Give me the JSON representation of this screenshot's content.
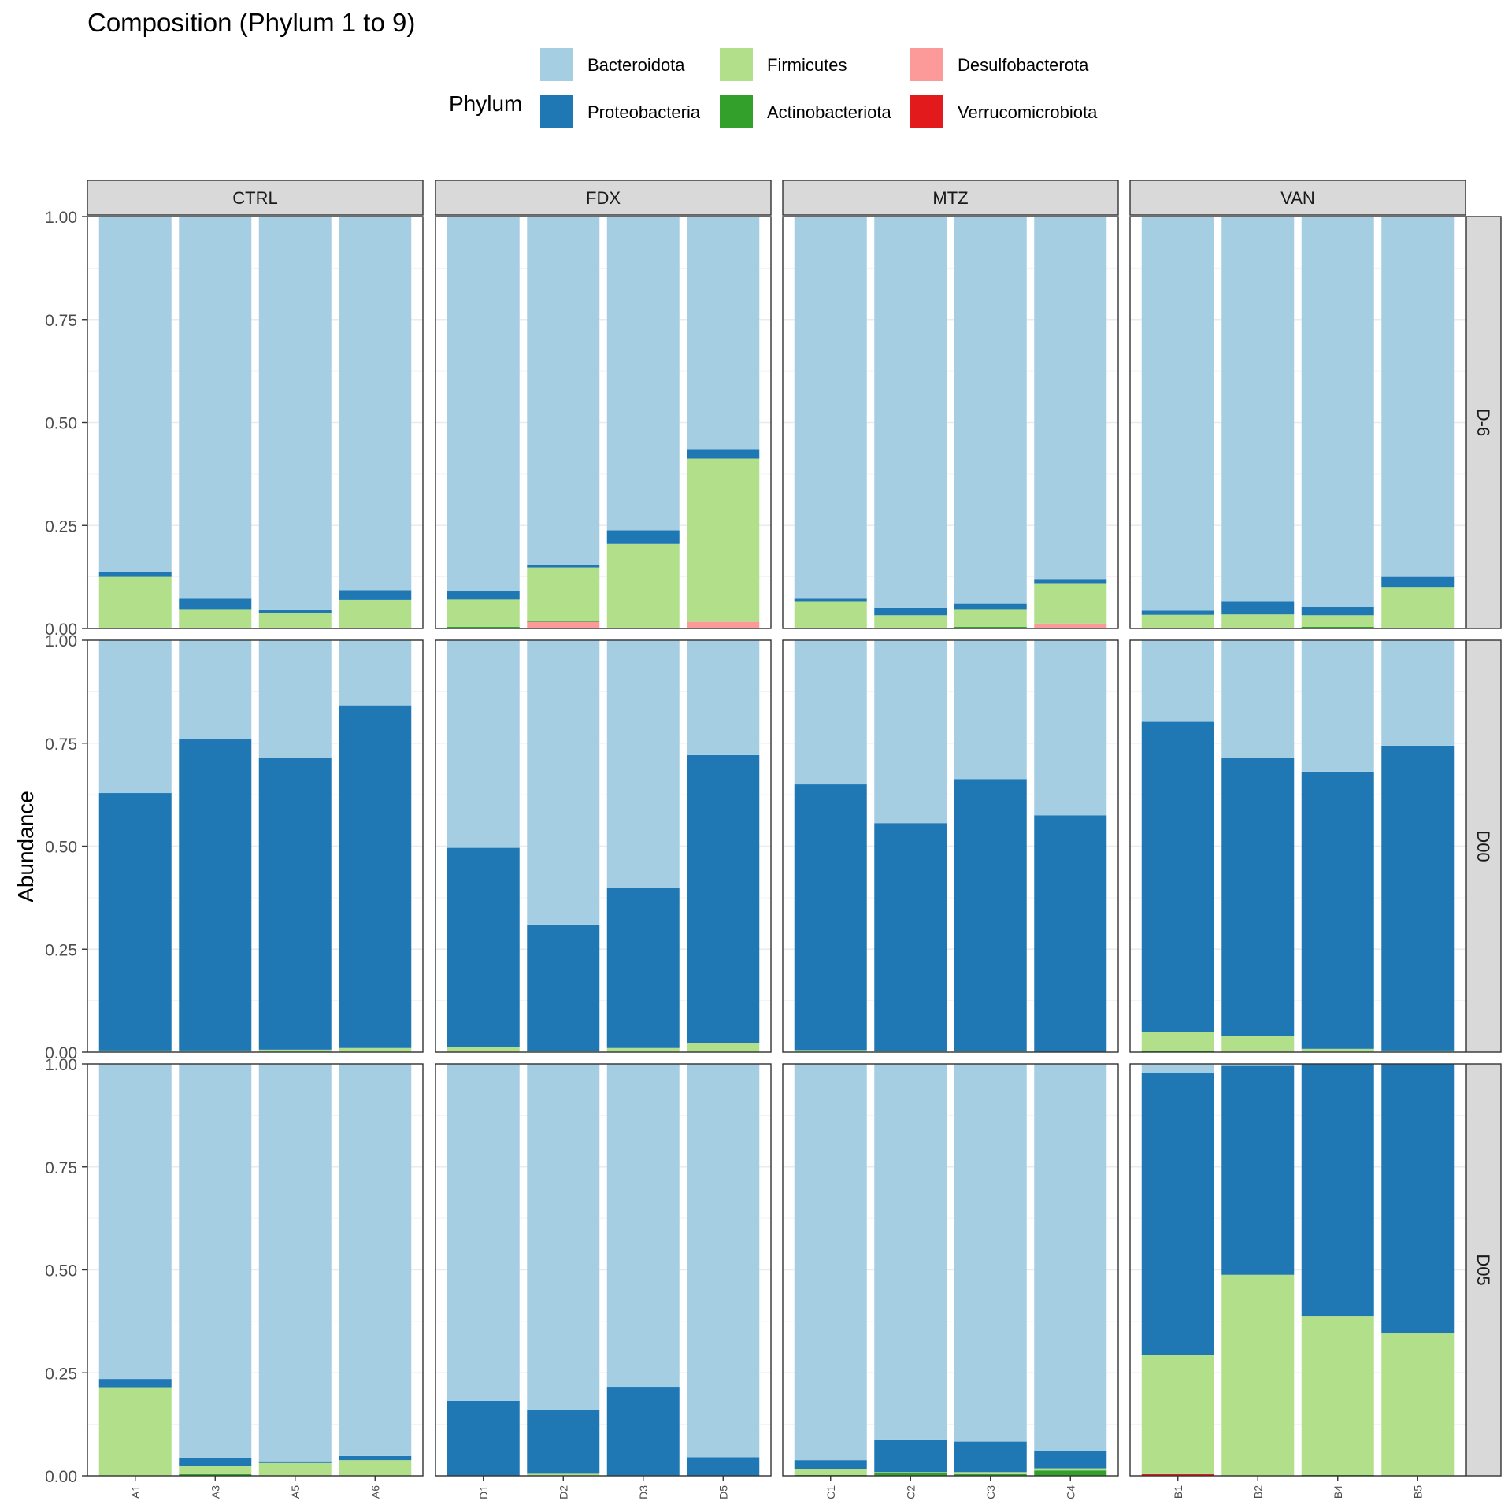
{
  "chart_data": {
    "type": "bar",
    "title": "Composition (Phylum 1 to 9)",
    "xlabel": "",
    "ylabel": "Abundance",
    "ylim": [
      0,
      1
    ],
    "y_ticks": [
      "0.00",
      "0.25",
      "0.50",
      "0.75",
      "1.00"
    ],
    "grid": true,
    "stacked": true,
    "legend": {
      "title": "Phylum",
      "placement": "top",
      "entries": [
        {
          "name": "Bacteroidota",
          "color": "#A6CEE3"
        },
        {
          "name": "Proteobacteria",
          "color": "#1F78B4"
        },
        {
          "name": "Firmicutes",
          "color": "#B2DF8A"
        },
        {
          "name": "Actinobacteriota",
          "color": "#33A02C"
        },
        {
          "name": "Desulfobacterota",
          "color": "#FB9A99"
        },
        {
          "name": "Verrucomicrobiota",
          "color": "#E31A1C"
        }
      ]
    },
    "stack_order_bottom_to_top": [
      "Verrucomicrobiota",
      "Desulfobacterota",
      "Actinobacteriota",
      "Firmicutes",
      "Proteobacteria",
      "Bacteroidota"
    ],
    "facet_columns": [
      {
        "label": "CTRL",
        "samples": [
          "A1",
          "A3",
          "A5",
          "A6"
        ]
      },
      {
        "label": "FDX",
        "samples": [
          "D1",
          "D2",
          "D3",
          "D5"
        ]
      },
      {
        "label": "MTZ",
        "samples": [
          "C1",
          "C2",
          "C3",
          "C4"
        ]
      },
      {
        "label": "VAN",
        "samples": [
          "B1",
          "B2",
          "B4",
          "B5"
        ]
      }
    ],
    "facet_rows": [
      {
        "label": "D-6",
        "panels": [
          [
            {
              "sample": "A1",
              "Verrucomicrobiota": 0,
              "Desulfobacterota": 0,
              "Actinobacteriota": 0.002,
              "Firmicutes": 0.123,
              "Proteobacteria": 0.013,
              "Bacteroidota": 0.862
            },
            {
              "sample": "A3",
              "Verrucomicrobiota": 0,
              "Desulfobacterota": 0,
              "Actinobacteriota": 0.002,
              "Firmicutes": 0.045,
              "Proteobacteria": 0.025,
              "Bacteroidota": 0.928
            },
            {
              "sample": "A5",
              "Verrucomicrobiota": 0,
              "Desulfobacterota": 0,
              "Actinobacteriota": 0.002,
              "Firmicutes": 0.036,
              "Proteobacteria": 0.008,
              "Bacteroidota": 0.954
            },
            {
              "sample": "A6",
              "Verrucomicrobiota": 0,
              "Desulfobacterota": 0,
              "Actinobacteriota": 0.002,
              "Firmicutes": 0.067,
              "Proteobacteria": 0.024,
              "Bacteroidota": 0.907
            }
          ],
          [
            {
              "sample": "D1",
              "Verrucomicrobiota": 0,
              "Desulfobacterota": 0,
              "Actinobacteriota": 0.004,
              "Firmicutes": 0.066,
              "Proteobacteria": 0.021,
              "Bacteroidota": 0.909
            },
            {
              "sample": "D2",
              "Verrucomicrobiota": 0,
              "Desulfobacterota": 0.016,
              "Actinobacteriota": 0.002,
              "Firmicutes": 0.13,
              "Proteobacteria": 0.006,
              "Bacteroidota": 0.846
            },
            {
              "sample": "D3",
              "Verrucomicrobiota": 0,
              "Desulfobacterota": 0,
              "Actinobacteriota": 0.002,
              "Firmicutes": 0.203,
              "Proteobacteria": 0.033,
              "Bacteroidota": 0.762
            },
            {
              "sample": "D5",
              "Verrucomicrobiota": 0,
              "Desulfobacterota": 0.016,
              "Actinobacteriota": 0,
              "Firmicutes": 0.396,
              "Proteobacteria": 0.023,
              "Bacteroidota": 0.565
            }
          ],
          [
            {
              "sample": "C1",
              "Verrucomicrobiota": 0,
              "Desulfobacterota": 0,
              "Actinobacteriota": 0.002,
              "Firmicutes": 0.064,
              "Proteobacteria": 0.006,
              "Bacteroidota": 0.928
            },
            {
              "sample": "C2",
              "Verrucomicrobiota": 0,
              "Desulfobacterota": 0,
              "Actinobacteriota": 0.002,
              "Firmicutes": 0.03,
              "Proteobacteria": 0.018,
              "Bacteroidota": 0.95
            },
            {
              "sample": "C3",
              "Verrucomicrobiota": 0,
              "Desulfobacterota": 0,
              "Actinobacteriota": 0.004,
              "Firmicutes": 0.043,
              "Proteobacteria": 0.013,
              "Bacteroidota": 0.94
            },
            {
              "sample": "C4",
              "Verrucomicrobiota": 0,
              "Desulfobacterota": 0.012,
              "Actinobacteriota": 0,
              "Firmicutes": 0.098,
              "Proteobacteria": 0.01,
              "Bacteroidota": 0.88
            }
          ],
          [
            {
              "sample": "B1",
              "Verrucomicrobiota": 0,
              "Desulfobacterota": 0,
              "Actinobacteriota": 0.002,
              "Firmicutes": 0.031,
              "Proteobacteria": 0.01,
              "Bacteroidota": 0.957
            },
            {
              "sample": "B2",
              "Verrucomicrobiota": 0,
              "Desulfobacterota": 0,
              "Actinobacteriota": 0.002,
              "Firmicutes": 0.032,
              "Proteobacteria": 0.032,
              "Bacteroidota": 0.934
            },
            {
              "sample": "B4",
              "Verrucomicrobiota": 0,
              "Desulfobacterota": 0,
              "Actinobacteriota": 0.004,
              "Firmicutes": 0.028,
              "Proteobacteria": 0.02,
              "Bacteroidota": 0.948
            },
            {
              "sample": "B5",
              "Verrucomicrobiota": 0,
              "Desulfobacterota": 0,
              "Actinobacteriota": 0.002,
              "Firmicutes": 0.097,
              "Proteobacteria": 0.026,
              "Bacteroidota": 0.875
            }
          ]
        ]
      },
      {
        "label": "D00",
        "panels": [
          [
            {
              "sample": "A1",
              "Verrucomicrobiota": 0,
              "Desulfobacterota": 0,
              "Actinobacteriota": 0,
              "Firmicutes": 0.004,
              "Proteobacteria": 0.625,
              "Bacteroidota": 0.371
            },
            {
              "sample": "A3",
              "Verrucomicrobiota": 0,
              "Desulfobacterota": 0,
              "Actinobacteriota": 0,
              "Firmicutes": 0.004,
              "Proteobacteria": 0.757,
              "Bacteroidota": 0.239
            },
            {
              "sample": "A5",
              "Verrucomicrobiota": 0,
              "Desulfobacterota": 0,
              "Actinobacteriota": 0,
              "Firmicutes": 0.006,
              "Proteobacteria": 0.708,
              "Bacteroidota": 0.286
            },
            {
              "sample": "A6",
              "Verrucomicrobiota": 0,
              "Desulfobacterota": 0,
              "Actinobacteriota": 0,
              "Firmicutes": 0.01,
              "Proteobacteria": 0.832,
              "Bacteroidota": 0.158
            }
          ],
          [
            {
              "sample": "D1",
              "Verrucomicrobiota": 0,
              "Desulfobacterota": 0,
              "Actinobacteriota": 0,
              "Firmicutes": 0.012,
              "Proteobacteria": 0.484,
              "Bacteroidota": 0.504
            },
            {
              "sample": "D2",
              "Verrucomicrobiota": 0,
              "Desulfobacterota": 0,
              "Actinobacteriota": 0,
              "Firmicutes": 0.002,
              "Proteobacteria": 0.308,
              "Bacteroidota": 0.69
            },
            {
              "sample": "D3",
              "Verrucomicrobiota": 0,
              "Desulfobacterota": 0,
              "Actinobacteriota": 0,
              "Firmicutes": 0.01,
              "Proteobacteria": 0.388,
              "Bacteroidota": 0.602
            },
            {
              "sample": "D5",
              "Verrucomicrobiota": 0,
              "Desulfobacterota": 0,
              "Actinobacteriota": 0,
              "Firmicutes": 0.021,
              "Proteobacteria": 0.7,
              "Bacteroidota": 0.279
            }
          ],
          [
            {
              "sample": "C1",
              "Verrucomicrobiota": 0,
              "Desulfobacterota": 0,
              "Actinobacteriota": 0,
              "Firmicutes": 0.005,
              "Proteobacteria": 0.645,
              "Bacteroidota": 0.35
            },
            {
              "sample": "C2",
              "Verrucomicrobiota": 0,
              "Desulfobacterota": 0,
              "Actinobacteriota": 0,
              "Firmicutes": 0.003,
              "Proteobacteria": 0.553,
              "Bacteroidota": 0.444
            },
            {
              "sample": "C3",
              "Verrucomicrobiota": 0,
              "Desulfobacterota": 0,
              "Actinobacteriota": 0,
              "Firmicutes": 0.003,
              "Proteobacteria": 0.66,
              "Bacteroidota": 0.337
            },
            {
              "sample": "C4",
              "Verrucomicrobiota": 0,
              "Desulfobacterota": 0,
              "Actinobacteriota": 0,
              "Firmicutes": 0.001,
              "Proteobacteria": 0.574,
              "Bacteroidota": 0.425
            }
          ],
          [
            {
              "sample": "B1",
              "Verrucomicrobiota": 0,
              "Desulfobacterota": 0,
              "Actinobacteriota": 0.002,
              "Firmicutes": 0.046,
              "Proteobacteria": 0.754,
              "Bacteroidota": 0.198
            },
            {
              "sample": "B2",
              "Verrucomicrobiota": 0,
              "Desulfobacterota": 0,
              "Actinobacteriota": 0,
              "Firmicutes": 0.04,
              "Proteobacteria": 0.675,
              "Bacteroidota": 0.285
            },
            {
              "sample": "B4",
              "Verrucomicrobiota": 0,
              "Desulfobacterota": 0,
              "Actinobacteriota": 0,
              "Firmicutes": 0.008,
              "Proteobacteria": 0.673,
              "Bacteroidota": 0.319
            },
            {
              "sample": "B5",
              "Verrucomicrobiota": 0,
              "Desulfobacterota": 0,
              "Actinobacteriota": 0,
              "Firmicutes": 0.004,
              "Proteobacteria": 0.74,
              "Bacteroidota": 0.256
            }
          ]
        ]
      },
      {
        "label": "D05",
        "panels": [
          [
            {
              "sample": "A1",
              "Verrucomicrobiota": 0,
              "Desulfobacterota": 0,
              "Actinobacteriota": 0,
              "Firmicutes": 0.215,
              "Proteobacteria": 0.02,
              "Bacteroidota": 0.765
            },
            {
              "sample": "A3",
              "Verrucomicrobiota": 0,
              "Desulfobacterota": 0,
              "Actinobacteriota": 0.004,
              "Firmicutes": 0.02,
              "Proteobacteria": 0.019,
              "Bacteroidota": 0.957
            },
            {
              "sample": "A5",
              "Verrucomicrobiota": 0,
              "Desulfobacterota": 0,
              "Actinobacteriota": 0,
              "Firmicutes": 0.031,
              "Proteobacteria": 0.004,
              "Bacteroidota": 0.965
            },
            {
              "sample": "A6",
              "Verrucomicrobiota": 0,
              "Desulfobacterota": 0,
              "Actinobacteriota": 0,
              "Firmicutes": 0.038,
              "Proteobacteria": 0.01,
              "Bacteroidota": 0.952
            }
          ],
          [
            {
              "sample": "D1",
              "Verrucomicrobiota": 0,
              "Desulfobacterota": 0,
              "Actinobacteriota": 0,
              "Firmicutes": 0,
              "Proteobacteria": 0.182,
              "Bacteroidota": 0.818
            },
            {
              "sample": "D2",
              "Verrucomicrobiota": 0,
              "Desulfobacterota": 0,
              "Actinobacteriota": 0,
              "Firmicutes": 0.005,
              "Proteobacteria": 0.155,
              "Bacteroidota": 0.84
            },
            {
              "sample": "D3",
              "Verrucomicrobiota": 0,
              "Desulfobacterota": 0,
              "Actinobacteriota": 0,
              "Firmicutes": 0.001,
              "Proteobacteria": 0.215,
              "Bacteroidota": 0.784
            },
            {
              "sample": "D5",
              "Verrucomicrobiota": 0,
              "Desulfobacterota": 0,
              "Actinobacteriota": 0,
              "Firmicutes": 0,
              "Proteobacteria": 0.045,
              "Bacteroidota": 0.955
            }
          ],
          [
            {
              "sample": "C1",
              "Verrucomicrobiota": 0,
              "Desulfobacterota": 0,
              "Actinobacteriota": 0.002,
              "Firmicutes": 0.014,
              "Proteobacteria": 0.022,
              "Bacteroidota": 0.962
            },
            {
              "sample": "C2",
              "Verrucomicrobiota": 0,
              "Desulfobacterota": 0,
              "Actinobacteriota": 0.006,
              "Firmicutes": 0.003,
              "Proteobacteria": 0.079,
              "Bacteroidota": 0.912
            },
            {
              "sample": "C3",
              "Verrucomicrobiota": 0,
              "Desulfobacterota": 0,
              "Actinobacteriota": 0.004,
              "Firmicutes": 0.005,
              "Proteobacteria": 0.074,
              "Bacteroidota": 0.917
            },
            {
              "sample": "C4",
              "Verrucomicrobiota": 0,
              "Desulfobacterota": 0,
              "Actinobacteriota": 0.013,
              "Firmicutes": 0.005,
              "Proteobacteria": 0.042,
              "Bacteroidota": 0.94
            }
          ],
          [
            {
              "sample": "B1",
              "Verrucomicrobiota": 0.004,
              "Desulfobacterota": 0,
              "Actinobacteriota": 0,
              "Firmicutes": 0.289,
              "Proteobacteria": 0.685,
              "Bacteroidota": 0.022
            },
            {
              "sample": "B2",
              "Verrucomicrobiota": 0,
              "Desulfobacterota": 0,
              "Actinobacteriota": 0,
              "Firmicutes": 0.488,
              "Proteobacteria": 0.507,
              "Bacteroidota": 0.005
            },
            {
              "sample": "B4",
              "Verrucomicrobiota": 0,
              "Desulfobacterota": 0,
              "Actinobacteriota": 0.002,
              "Firmicutes": 0.386,
              "Proteobacteria": 0.612,
              "Bacteroidota": 0
            },
            {
              "sample": "B5",
              "Verrucomicrobiota": 0,
              "Desulfobacterota": 0,
              "Actinobacteriota": 0,
              "Firmicutes": 0.346,
              "Proteobacteria": 0.654,
              "Bacteroidota": 0
            }
          ]
        ]
      }
    ]
  }
}
